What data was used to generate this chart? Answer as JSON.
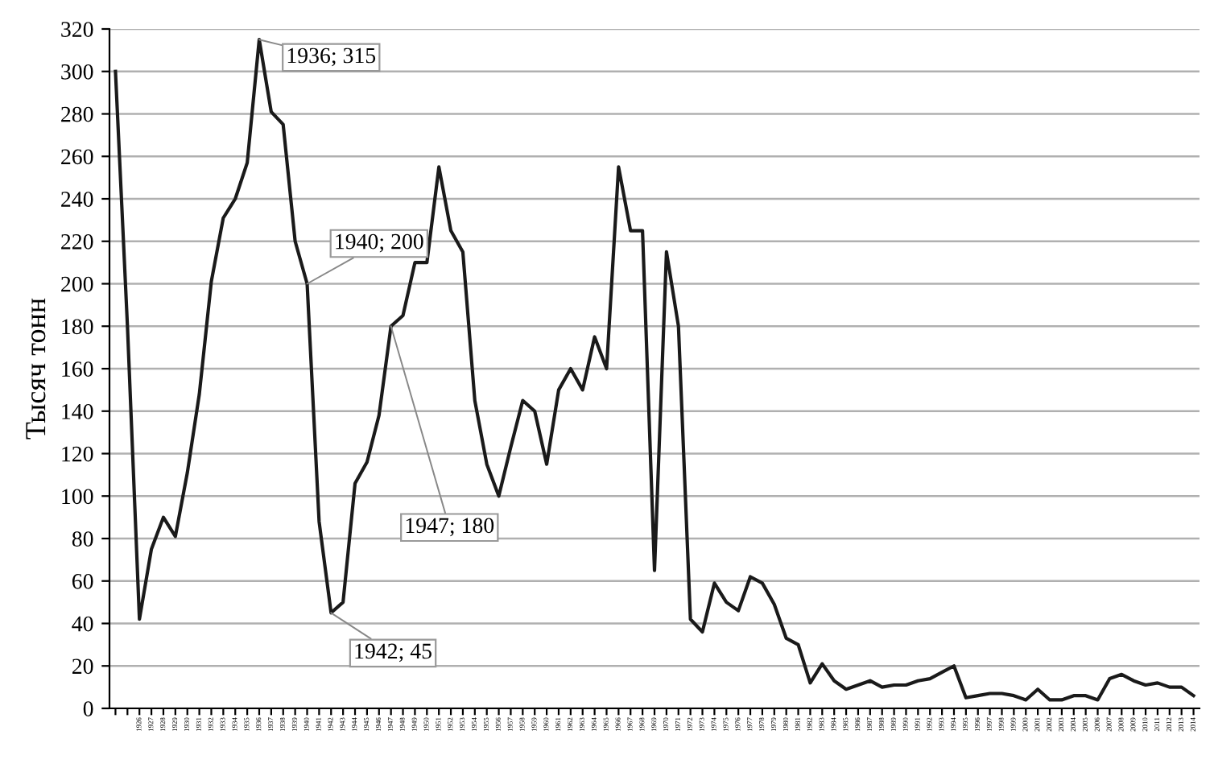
{
  "chart_data": {
    "type": "line",
    "ylabel": "Тысяч тонн",
    "categories": [
      null,
      null,
      "1926",
      "1927",
      "1928",
      "1929",
      "1930",
      "1931",
      "1932",
      "1933",
      "1934",
      "1935",
      "1936",
      "1937",
      "1938",
      "1939",
      "1940",
      "1941",
      "1942",
      "1943",
      "1944",
      "1945",
      "1946",
      "1947",
      "1948",
      "1949",
      "1950",
      "1951",
      "1952",
      "1953",
      "1954",
      "1955",
      "1956",
      "1957",
      "1958",
      "1959",
      "1960",
      "1961",
      "1962",
      "1963",
      "1964",
      "1965",
      "1966",
      "1967",
      "1968",
      "1969",
      "1970",
      "1971",
      "1972",
      "1973",
      "1974",
      "1975",
      "1976",
      "1977",
      "1978",
      "1979",
      "1980",
      "1981",
      "1982",
      "1983",
      "1984",
      "1985",
      "1986",
      "1987",
      "1988",
      "1989",
      "1990",
      "1991",
      "1992",
      "1993",
      "1994",
      "1995",
      "1996",
      "1997",
      "1998",
      "1999",
      "2000",
      "2001",
      "2002",
      "2003",
      "2004",
      "2005",
      "2006",
      "2007",
      "2008",
      "2009",
      "2010",
      "2011",
      "2012",
      "2013",
      "2014"
    ],
    "series": [
      {
        "color": "#1a1a1a",
        "values": [
          300,
          180,
          42,
          75,
          90,
          81,
          111,
          148,
          201,
          231,
          240,
          257,
          315,
          281,
          275,
          220,
          200,
          88,
          45,
          50,
          106,
          116,
          138,
          180,
          185,
          210,
          210,
          255,
          225,
          215,
          145,
          115,
          100,
          123,
          145,
          140,
          115,
          150,
          160,
          150,
          175,
          160,
          255,
          225,
          225,
          65,
          215,
          180,
          42,
          36,
          59,
          50,
          46,
          62,
          59,
          49,
          33,
          30,
          12,
          21,
          13,
          9,
          11,
          13,
          10,
          11,
          11,
          13,
          14,
          17,
          20,
          5,
          6,
          7,
          7,
          6,
          4,
          9,
          4,
          4,
          6,
          6,
          4,
          14,
          16,
          13,
          11,
          12,
          10,
          10,
          6
        ]
      }
    ],
    "ylim": [
      0,
      320
    ],
    "yticks": [
      0,
      20,
      40,
      60,
      80,
      100,
      120,
      140,
      160,
      180,
      200,
      220,
      240,
      260,
      280,
      300,
      320
    ],
    "grid": "y",
    "marker": "none",
    "line_style": "solid",
    "annotations": [
      {
        "text": "1936; 315",
        "x": "1936",
        "y": 315
      },
      {
        "text": "1940; 200",
        "x": "1940",
        "y": 200
      },
      {
        "text": "1947; 180",
        "x": "1947",
        "y": 180
      },
      {
        "text": "1942; 45",
        "x": "1942",
        "y": 45
      }
    ]
  }
}
